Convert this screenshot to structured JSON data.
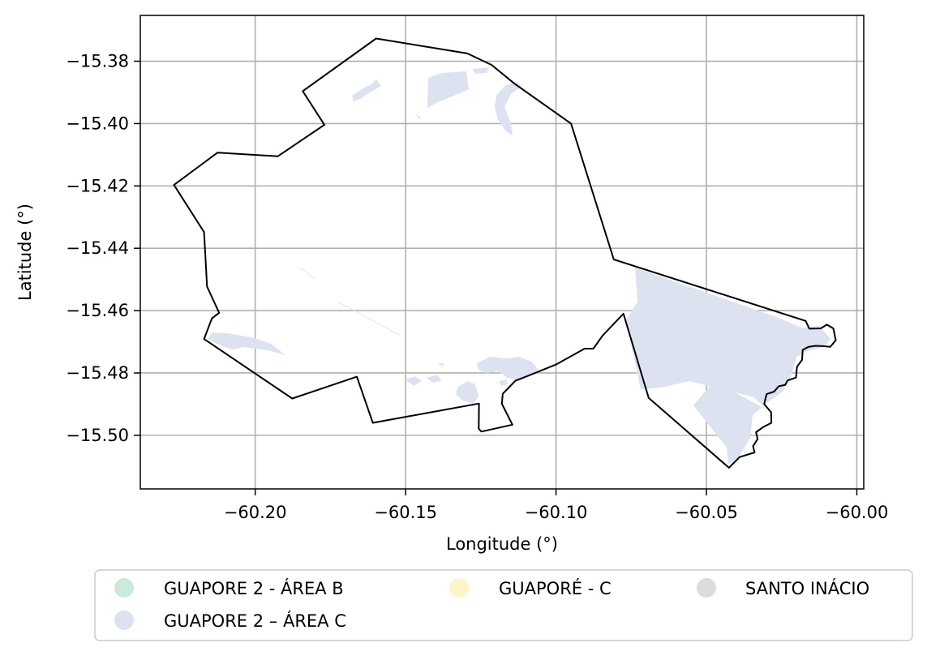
{
  "map": {
    "xlabel": "Longitude (°)",
    "ylabel": "Latitude (°)",
    "x_ticks": [
      {
        "value": -60.2,
        "label": "−60.20"
      },
      {
        "value": -60.15,
        "label": "−60.15"
      },
      {
        "value": -60.1,
        "label": "−60.10"
      },
      {
        "value": -60.05,
        "label": "−60.05"
      },
      {
        "value": -60.0,
        "label": "−60.00"
      }
    ],
    "y_ticks": [
      {
        "value": -15.38,
        "label": "−15.38"
      },
      {
        "value": -15.4,
        "label": "−15.40"
      },
      {
        "value": -15.42,
        "label": "−15.42"
      },
      {
        "value": -15.44,
        "label": "−15.44"
      },
      {
        "value": -15.46,
        "label": "−15.46"
      },
      {
        "value": -15.48,
        "label": "−15.48"
      },
      {
        "value": -15.5,
        "label": "−15.50"
      }
    ],
    "xlim": [
      -60.2382,
      -59.9977
    ],
    "ylim": [
      -15.5172,
      -15.3653
    ],
    "grid": true,
    "boundary": [
      [
        -60.1598,
        -15.3727
      ],
      [
        -60.1295,
        -15.3775
      ],
      [
        -60.1214,
        -15.3812
      ],
      [
        -60.1138,
        -15.3872
      ],
      [
        -60.095,
        -15.4
      ],
      [
        -60.0808,
        -15.4436
      ],
      [
        -60.017,
        -15.4633
      ],
      [
        -60.0158,
        -15.4658
      ],
      [
        -60.012,
        -15.4657
      ],
      [
        -60.01,
        -15.4645
      ],
      [
        -60.0078,
        -15.4657
      ],
      [
        -60.007,
        -15.4695
      ],
      [
        -60.0088,
        -15.4716
      ],
      [
        -60.0112,
        -15.4714
      ],
      [
        -60.0137,
        -15.4713
      ],
      [
        -60.016,
        -15.4716
      ],
      [
        -60.018,
        -15.4726
      ],
      [
        -60.0182,
        -15.4758
      ],
      [
        -60.0199,
        -15.478
      ],
      [
        -60.0202,
        -15.4815
      ],
      [
        -60.023,
        -15.4824
      ],
      [
        -60.0238,
        -15.4838
      ],
      [
        -60.026,
        -15.4843
      ],
      [
        -60.0275,
        -15.486
      ],
      [
        -60.03,
        -15.4868
      ],
      [
        -60.0308,
        -15.49
      ],
      [
        -60.0285,
        -15.4926
      ],
      [
        -60.0284,
        -15.496
      ],
      [
        -60.0312,
        -15.4974
      ],
      [
        -60.0335,
        -15.499
      ],
      [
        -60.033,
        -15.5012
      ],
      [
        -60.0345,
        -15.5035
      ],
      [
        -60.034,
        -15.5055
      ],
      [
        -60.039,
        -15.507
      ],
      [
        -60.0425,
        -15.5104
      ],
      [
        -60.0692,
        -15.488
      ],
      [
        -60.0776,
        -15.461
      ],
      [
        -60.0845,
        -15.468
      ],
      [
        -60.0876,
        -15.4722
      ],
      [
        -60.0905,
        -15.4722
      ],
      [
        -60.1,
        -15.4773
      ],
      [
        -60.1095,
        -15.481
      ],
      [
        -60.1135,
        -15.4825
      ],
      [
        -60.1177,
        -15.4867
      ],
      [
        -60.118,
        -15.4899
      ],
      [
        -60.1145,
        -15.4966
      ],
      [
        -60.1248,
        -15.4988
      ],
      [
        -60.1257,
        -15.4979
      ],
      [
        -60.1256,
        -15.4898
      ],
      [
        -60.1609,
        -15.496
      ],
      [
        -60.1662,
        -15.4812
      ],
      [
        -60.1877,
        -15.4882
      ],
      [
        -60.217,
        -15.4691
      ],
      [
        -60.2144,
        -15.4625
      ],
      [
        -60.212,
        -15.4607
      ],
      [
        -60.216,
        -15.4523
      ],
      [
        -60.217,
        -15.4348
      ],
      [
        -60.227,
        -15.4197
      ],
      [
        -60.2125,
        -15.4093
      ],
      [
        -60.1925,
        -15.4105
      ],
      [
        -60.177,
        -15.4004
      ],
      [
        -60.1842,
        -15.3896
      ],
      [
        -60.1598,
        -15.3727
      ]
    ]
  },
  "legend": {
    "items": [
      {
        "label": "GUAPORE 2 - ÁREA B",
        "color": "#cde9d9"
      },
      {
        "label": "GUAPORE 2 – ÁREA C",
        "color": "#dde2f0"
      },
      {
        "label": "GUAPORÉ - C",
        "color": "#fff4c8"
      },
      {
        "label": "SANTO INÁCIO",
        "color": "#dcdcdc"
      }
    ]
  },
  "colors": {
    "area_c_fill": "#dde2f0",
    "boundary_stroke": "#000000",
    "grid": "#b0b0b0"
  }
}
